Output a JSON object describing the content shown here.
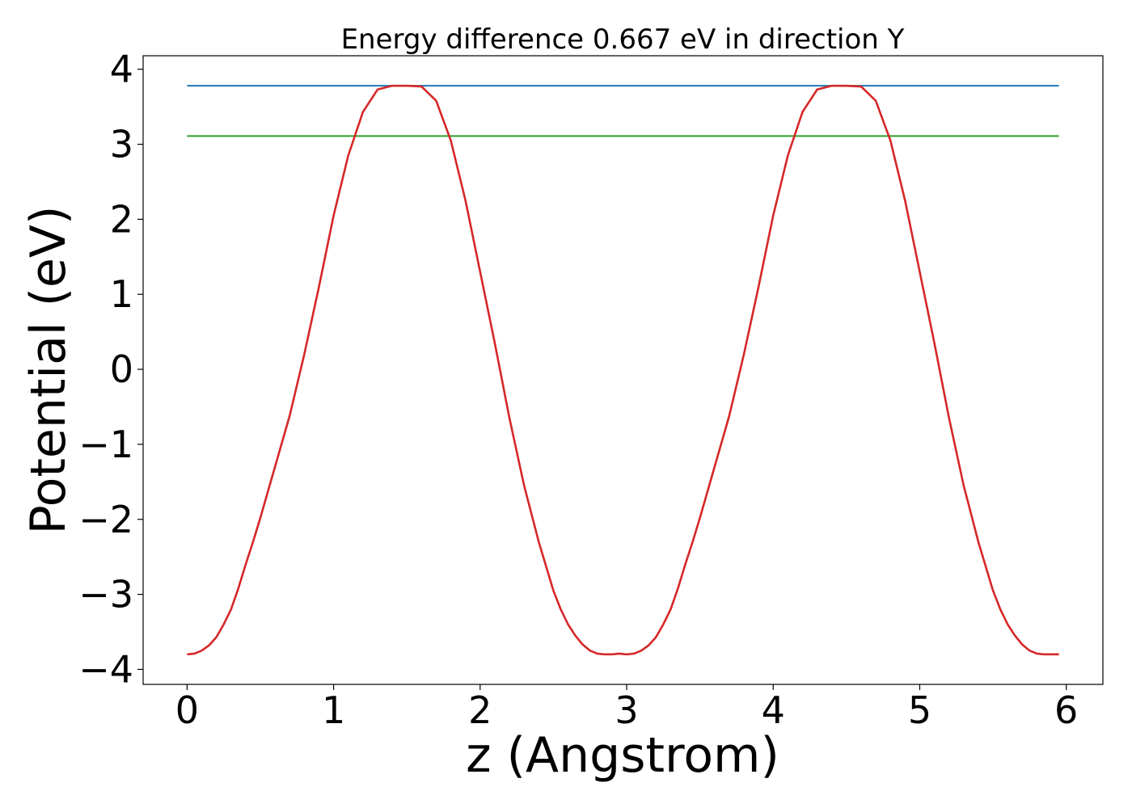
{
  "chart_data": {
    "type": "line",
    "title": "Energy difference 0.667 eV in direction Y",
    "xlabel": "z (Angstrom)",
    "ylabel": "Potential (eV)",
    "xlim": [
      -0.3,
      6.25
    ],
    "ylim": [
      -4.2,
      4.18
    ],
    "x_ticks": [
      0,
      1,
      2,
      3,
      4,
      5,
      6
    ],
    "x_tick_labels": [
      "0",
      "1",
      "2",
      "3",
      "4",
      "5",
      "6"
    ],
    "y_ticks": [
      4,
      3,
      2,
      1,
      0,
      -1,
      -2,
      -3,
      -4
    ],
    "y_tick_labels": [
      "4",
      "3",
      "2",
      "1",
      "0",
      "−1",
      "−2",
      "−3",
      "−4"
    ],
    "grid": false,
    "series": [
      {
        "color": "#1f77b4",
        "x": [
          0,
          5.95
        ],
        "y": [
          3.78,
          3.78
        ]
      },
      {
        "color": "#2ca02c",
        "x": [
          0,
          5.95
        ],
        "y": [
          3.11,
          3.11
        ]
      },
      {
        "color": "#d62728",
        "x": [
          0,
          0.05,
          0.1,
          0.15,
          0.2,
          0.25,
          0.3,
          0.35,
          0.4,
          0.45,
          0.5,
          0.6,
          0.7,
          0.8,
          0.9,
          1.0,
          1.1,
          1.2,
          1.3,
          1.4,
          1.5,
          1.6,
          1.7,
          1.8,
          1.9,
          2.0,
          2.1,
          2.2,
          2.3,
          2.4,
          2.5,
          2.55,
          2.6,
          2.65,
          2.7,
          2.75,
          2.8,
          2.85,
          2.9,
          2.95,
          3.0,
          3.05,
          3.1,
          3.15,
          3.2,
          3.25,
          3.3,
          3.35,
          3.4,
          3.45,
          3.5,
          3.6,
          3.7,
          3.8,
          3.9,
          4.0,
          4.1,
          4.2,
          4.3,
          4.4,
          4.5,
          4.6,
          4.7,
          4.8,
          4.9,
          5.0,
          5.1,
          5.2,
          5.3,
          5.4,
          5.5,
          5.55,
          5.6,
          5.65,
          5.7,
          5.75,
          5.8,
          5.85,
          5.9,
          5.95
        ],
        "y": [
          -3.8,
          -3.79,
          -3.75,
          -3.68,
          -3.57,
          -3.4,
          -3.2,
          -2.92,
          -2.6,
          -2.3,
          -1.98,
          -1.3,
          -0.62,
          0.2,
          1.1,
          2.05,
          2.85,
          3.43,
          3.73,
          3.78,
          3.78,
          3.77,
          3.58,
          3.05,
          2.25,
          1.3,
          0.35,
          -0.65,
          -1.55,
          -2.3,
          -2.95,
          -3.2,
          -3.4,
          -3.55,
          -3.67,
          -3.75,
          -3.79,
          -3.8,
          -3.8,
          -3.79,
          -3.8,
          -3.79,
          -3.75,
          -3.68,
          -3.57,
          -3.4,
          -3.2,
          -2.92,
          -2.6,
          -2.3,
          -1.98,
          -1.3,
          -0.62,
          0.2,
          1.1,
          2.05,
          2.85,
          3.43,
          3.73,
          3.78,
          3.78,
          3.77,
          3.58,
          3.05,
          2.25,
          1.3,
          0.35,
          -0.65,
          -1.55,
          -2.3,
          -2.95,
          -3.2,
          -3.4,
          -3.55,
          -3.67,
          -3.75,
          -3.79,
          -3.8,
          -3.8,
          -3.8
        ]
      }
    ]
  }
}
